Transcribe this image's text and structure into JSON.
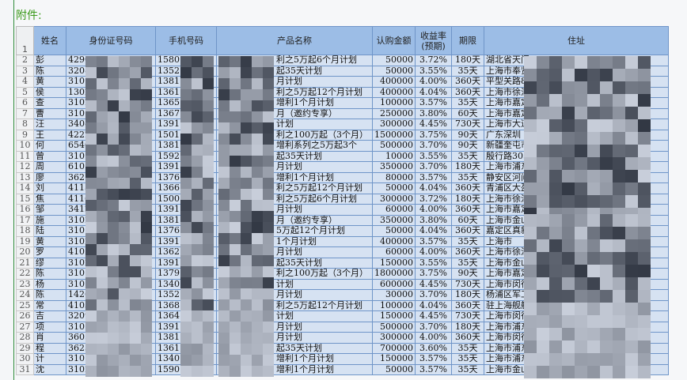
{
  "title": "附件:",
  "headers": {
    "row": "1",
    "name": "姓名",
    "id": "身份证号码",
    "phone": "手机号码",
    "product": "产品名称",
    "amount": "认购金额",
    "rate": "收益率\n(预期)",
    "term": "期限",
    "address": "住址"
  },
  "rows": [
    [
      "2",
      "彭",
      "4290",
      "1580",
      "利之5万起6个月计划",
      "50000",
      "3.72%",
      "180天",
      "湖北省天门"
    ],
    [
      "3",
      "陈",
      "3208",
      "1352",
      "起35天计划",
      "50000",
      "3.55%",
      "35天",
      "上海市奉贤"
    ],
    [
      "4",
      "黄",
      "3101",
      "1381",
      "月计划",
      "400000",
      "4.00%",
      "360天",
      "平型关路8"
    ],
    [
      "5",
      "侯",
      "1302",
      "1361",
      "利之5万起12个月计划",
      "400000",
      "4.04%",
      "360天",
      "上海市徐汇"
    ],
    [
      "6",
      "查",
      "3102",
      "1365",
      "增利1个月计划",
      "100000",
      "3.57%",
      "35天",
      "上海市嘉定"
    ],
    [
      "7",
      "曹",
      "3101",
      "1367",
      "月（邀约专享）",
      "250000",
      "3.80%",
      "60天",
      "上海市嘉定"
    ],
    [
      "8",
      "汪",
      "3408",
      "1391",
      "计划",
      "300000",
      "4.45%",
      "730天",
      "上海市大道"
    ],
    [
      "9",
      "王",
      "4222",
      "1501",
      "利之100万起（3个月）",
      "1500000",
      "3.75%",
      "90天",
      "广东深圳"
    ],
    [
      "10",
      "何",
      "6540",
      "1381",
      "增利系列之5万起3个",
      "500000",
      "3.70%",
      "90天",
      "新疆奎屯市"
    ],
    [
      "11",
      "曾",
      "3101",
      "1592",
      "起35天计划",
      "10000",
      "3.55%",
      "35天",
      "殷行路305"
    ],
    [
      "12",
      "周",
      "6101",
      "1391",
      "月计划",
      "350000",
      "3.70%",
      "180天",
      "上海市浦东"
    ],
    [
      "13",
      "廖",
      "3621",
      "1376",
      "增利1个月计划",
      "80000",
      "3.57%",
      "35天",
      "静安区河间"
    ],
    [
      "14",
      "刘",
      "4113",
      "1366",
      "利之5万起12个月计划",
      "50000",
      "4.04%",
      "360天",
      "青浦区大盈"
    ],
    [
      "15",
      "焦",
      "4116",
      "1500",
      "利之5万起6个月计划",
      "300000",
      "3.72%",
      "180天",
      "上海市徐汇"
    ],
    [
      "16",
      "邹",
      "3412",
      "1391",
      "月计划",
      "60000",
      "4.00%",
      "360天",
      "上海市嘉定"
    ],
    [
      "17",
      "施",
      "3102",
      "1381",
      "月（邀约专享）",
      "350000",
      "3.80%",
      "60天",
      "上海市金山"
    ],
    [
      "18",
      "陆",
      "3101",
      "1376",
      "5万起12个月计划",
      "50000",
      "4.04%",
      "360天",
      "嘉定区真新"
    ],
    [
      "19",
      "黄",
      "3102",
      "1391",
      "1个月计划",
      "400000",
      "3.57%",
      "35天",
      "上海市"
    ],
    [
      "20",
      "罗",
      "4105",
      "1362",
      "月计划",
      "60000",
      "4.00%",
      "360天",
      "上海市徐汇"
    ],
    [
      "21",
      "缪",
      "3102",
      "1391",
      "起35天计划",
      "150000",
      "3.55%",
      "35天",
      "上海市金山"
    ],
    [
      "22",
      "陈",
      "3101",
      "1379",
      "利之100万起（3个月）",
      "1800000",
      "3.75%",
      "90天",
      "上海市嘉定"
    ],
    [
      "23",
      "杨",
      "3101",
      "1340",
      "计划",
      "600000",
      "4.45%",
      "730天",
      "上海市闵行"
    ],
    [
      "24",
      "陈",
      "1426",
      "1352",
      "月计划",
      "30000",
      "3.70%",
      "180天",
      "杨浦区军工"
    ],
    [
      "25",
      "常",
      "4103",
      "1368",
      "利之5万起12个月计划",
      "100000",
      "4.04%",
      "360天",
      "驻上海舰艇"
    ],
    [
      "26",
      "吉",
      "3209",
      "1364",
      "计划",
      "150000",
      "4.45%",
      "730天",
      "上海市闵行"
    ],
    [
      "27",
      "项",
      "3101",
      "1391",
      "月计划",
      "500000",
      "3.70%",
      "180天",
      "上海市浦东"
    ],
    [
      "28",
      "肖",
      "3605",
      "1381",
      "月计划",
      "300000",
      "4.00%",
      "360天",
      "上海市闵行"
    ],
    [
      "29",
      "程",
      "3623",
      "1361",
      "起35天计划",
      "700000",
      "3.60%",
      "35天",
      "上海市浦东"
    ],
    [
      "30",
      "计",
      "3101",
      "1340",
      "增利1个月计划",
      "150000",
      "3.57%",
      "35天",
      "上海市浦东"
    ],
    [
      "31",
      "沈",
      "3102",
      "1590",
      "增利1个月计划",
      "50000",
      "3.57%",
      "35天",
      "上海市金山"
    ]
  ]
}
